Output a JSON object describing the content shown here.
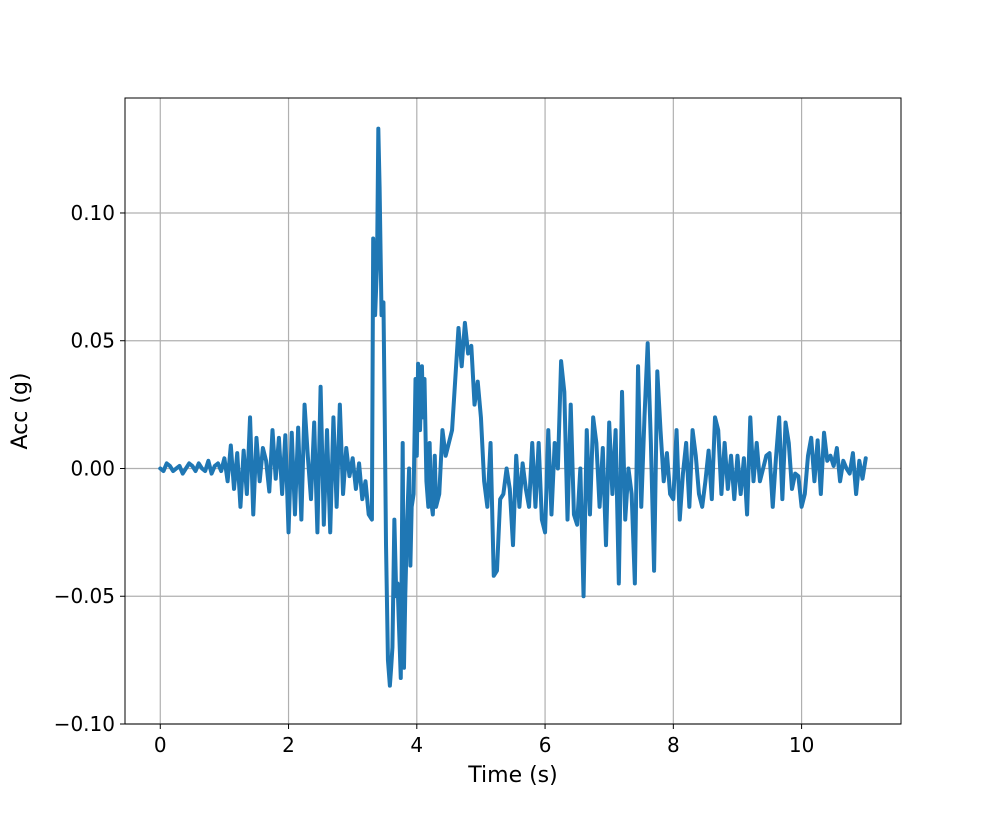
{
  "chart_data": {
    "type": "line",
    "title": "",
    "xlabel": "Time (s)",
    "ylabel": "Acc (g)",
    "xlim": [
      -0.55,
      11.55
    ],
    "ylim": [
      -0.1,
      0.145
    ],
    "x_ticks": [
      0,
      2,
      4,
      6,
      8,
      10
    ],
    "x_tick_labels": [
      "0",
      "2",
      "4",
      "6",
      "8",
      "10"
    ],
    "y_ticks": [
      -0.1,
      -0.05,
      0.0,
      0.05,
      0.1
    ],
    "y_tick_labels": [
      "−0.10",
      "−0.05",
      "0.00",
      "0.05",
      "0.10"
    ],
    "grid": true,
    "legend": "none",
    "colors": {
      "line": "#1f77b4",
      "grid": "#b0b0b0",
      "axis": "#000000"
    },
    "series": [
      {
        "x": [
          0.0,
          0.05,
          0.1,
          0.15,
          0.2,
          0.25,
          0.3,
          0.35,
          0.4,
          0.45,
          0.5,
          0.55,
          0.6,
          0.65,
          0.7,
          0.75,
          0.8,
          0.85,
          0.9,
          0.95,
          1.0,
          1.05,
          1.1,
          1.15,
          1.2,
          1.25,
          1.3,
          1.35,
          1.4,
          1.45,
          1.5,
          1.55,
          1.6,
          1.65,
          1.7,
          1.75,
          1.8,
          1.85,
          1.9,
          1.95,
          2.0,
          2.05,
          2.1,
          2.15,
          2.2,
          2.25,
          2.3,
          2.35,
          2.4,
          2.45,
          2.5,
          2.55,
          2.6,
          2.65,
          2.7,
          2.75,
          2.8,
          2.85,
          2.9,
          2.95,
          3.0,
          3.05,
          3.1,
          3.15,
          3.2,
          3.25,
          3.3,
          3.32,
          3.35,
          3.38,
          3.4,
          3.42,
          3.45,
          3.48,
          3.5,
          3.52,
          3.55,
          3.58,
          3.6,
          3.62,
          3.65,
          3.68,
          3.7,
          3.72,
          3.75,
          3.78,
          3.8,
          3.82,
          3.85,
          3.88,
          3.9,
          3.92,
          3.95,
          3.98,
          4.0,
          4.02,
          4.05,
          4.08,
          4.1,
          4.12,
          4.15,
          4.18,
          4.2,
          4.22,
          4.25,
          4.28,
          4.3,
          4.35,
          4.4,
          4.45,
          4.5,
          4.55,
          4.6,
          4.65,
          4.7,
          4.75,
          4.8,
          4.85,
          4.9,
          4.95,
          5.0,
          5.05,
          5.1,
          5.15,
          5.2,
          5.25,
          5.3,
          5.35,
          5.4,
          5.45,
          5.5,
          5.55,
          5.6,
          5.65,
          5.7,
          5.75,
          5.8,
          5.85,
          5.9,
          5.95,
          6.0,
          6.05,
          6.1,
          6.15,
          6.2,
          6.25,
          6.3,
          6.35,
          6.4,
          6.45,
          6.5,
          6.55,
          6.6,
          6.65,
          6.7,
          6.75,
          6.8,
          6.85,
          6.9,
          6.95,
          7.0,
          7.05,
          7.1,
          7.15,
          7.2,
          7.25,
          7.3,
          7.35,
          7.4,
          7.45,
          7.5,
          7.55,
          7.6,
          7.65,
          7.7,
          7.75,
          7.8,
          7.85,
          7.9,
          7.95,
          8.0,
          8.05,
          8.1,
          8.15,
          8.2,
          8.25,
          8.3,
          8.35,
          8.4,
          8.45,
          8.5,
          8.55,
          8.6,
          8.65,
          8.7,
          8.75,
          8.8,
          8.85,
          8.9,
          8.95,
          9.0,
          9.05,
          9.1,
          9.15,
          9.2,
          9.25,
          9.3,
          9.35,
          9.4,
          9.45,
          9.5,
          9.55,
          9.6,
          9.65,
          9.7,
          9.75,
          9.8,
          9.85,
          9.9,
          9.95,
          10.0,
          10.05,
          10.1,
          10.15,
          10.2,
          10.25,
          10.3,
          10.35,
          10.4,
          10.45,
          10.5,
          10.55,
          10.6,
          10.65,
          10.7,
          10.75,
          10.8,
          10.85,
          10.9,
          10.95,
          11.0
        ],
        "y": [
          0.0,
          -0.001,
          0.002,
          0.001,
          -0.001,
          0.0,
          0.001,
          -0.002,
          0.0,
          0.002,
          0.001,
          -0.001,
          0.002,
          0.0,
          -0.001,
          0.003,
          -0.002,
          0.001,
          0.002,
          -0.001,
          0.004,
          -0.005,
          0.009,
          -0.008,
          0.006,
          -0.015,
          0.007,
          -0.01,
          0.02,
          -0.018,
          0.012,
          -0.005,
          0.008,
          0.003,
          -0.009,
          0.015,
          -0.004,
          0.012,
          -0.01,
          0.013,
          -0.025,
          0.014,
          -0.018,
          0.016,
          -0.02,
          0.025,
          0.005,
          -0.012,
          0.018,
          -0.025,
          0.032,
          -0.022,
          0.015,
          -0.025,
          0.02,
          -0.015,
          0.025,
          -0.01,
          0.008,
          -0.003,
          0.004,
          -0.008,
          0.002,
          -0.012,
          -0.005,
          -0.018,
          -0.02,
          0.09,
          0.06,
          0.08,
          0.133,
          0.11,
          0.06,
          0.065,
          0.02,
          -0.03,
          -0.075,
          -0.085,
          -0.078,
          -0.07,
          -0.02,
          -0.05,
          -0.045,
          -0.06,
          -0.082,
          0.01,
          -0.078,
          -0.05,
          -0.02,
          0.0,
          -0.038,
          -0.015,
          -0.01,
          0.035,
          0.005,
          0.041,
          0.015,
          0.04,
          0.02,
          0.035,
          -0.005,
          -0.015,
          0.01,
          -0.012,
          -0.018,
          0.005,
          -0.015,
          -0.01,
          0.015,
          0.005,
          0.01,
          0.015,
          0.035,
          0.055,
          0.04,
          0.057,
          0.045,
          0.048,
          0.025,
          0.034,
          0.02,
          -0.005,
          -0.015,
          0.01,
          -0.042,
          -0.04,
          -0.012,
          -0.01,
          0.0,
          -0.008,
          -0.03,
          0.005,
          -0.015,
          0.002,
          -0.008,
          -0.015,
          0.01,
          -0.015,
          0.01,
          -0.02,
          -0.025,
          0.015,
          -0.018,
          0.01,
          0.0,
          0.042,
          0.03,
          -0.02,
          0.025,
          -0.018,
          -0.022,
          0.0,
          -0.05,
          0.015,
          -0.018,
          0.02,
          0.01,
          -0.015,
          0.008,
          -0.03,
          0.018,
          -0.01,
          0.015,
          -0.045,
          0.03,
          -0.02,
          0.0,
          -0.01,
          -0.045,
          0.04,
          -0.015,
          0.02,
          0.049,
          0.01,
          -0.04,
          0.038,
          0.015,
          -0.005,
          0.006,
          -0.01,
          -0.012,
          0.015,
          -0.02,
          -0.002,
          0.01,
          -0.015,
          0.015,
          0.005,
          -0.01,
          -0.015,
          -0.005,
          0.007,
          -0.012,
          0.02,
          0.015,
          -0.01,
          0.01,
          -0.008,
          0.005,
          -0.012,
          0.005,
          -0.01,
          0.004,
          -0.018,
          0.02,
          -0.005,
          0.01,
          -0.005,
          0.0,
          0.005,
          0.006,
          -0.015,
          0.004,
          0.02,
          -0.012,
          0.018,
          0.01,
          -0.008,
          -0.002,
          -0.003,
          -0.015,
          -0.01,
          0.005,
          0.012,
          -0.005,
          0.011,
          -0.01,
          0.014,
          0.003,
          0.005,
          0.001,
          0.008,
          -0.005,
          0.003,
          0.0,
          -0.002,
          0.006,
          -0.01,
          0.003,
          -0.004,
          0.004
        ]
      }
    ]
  }
}
